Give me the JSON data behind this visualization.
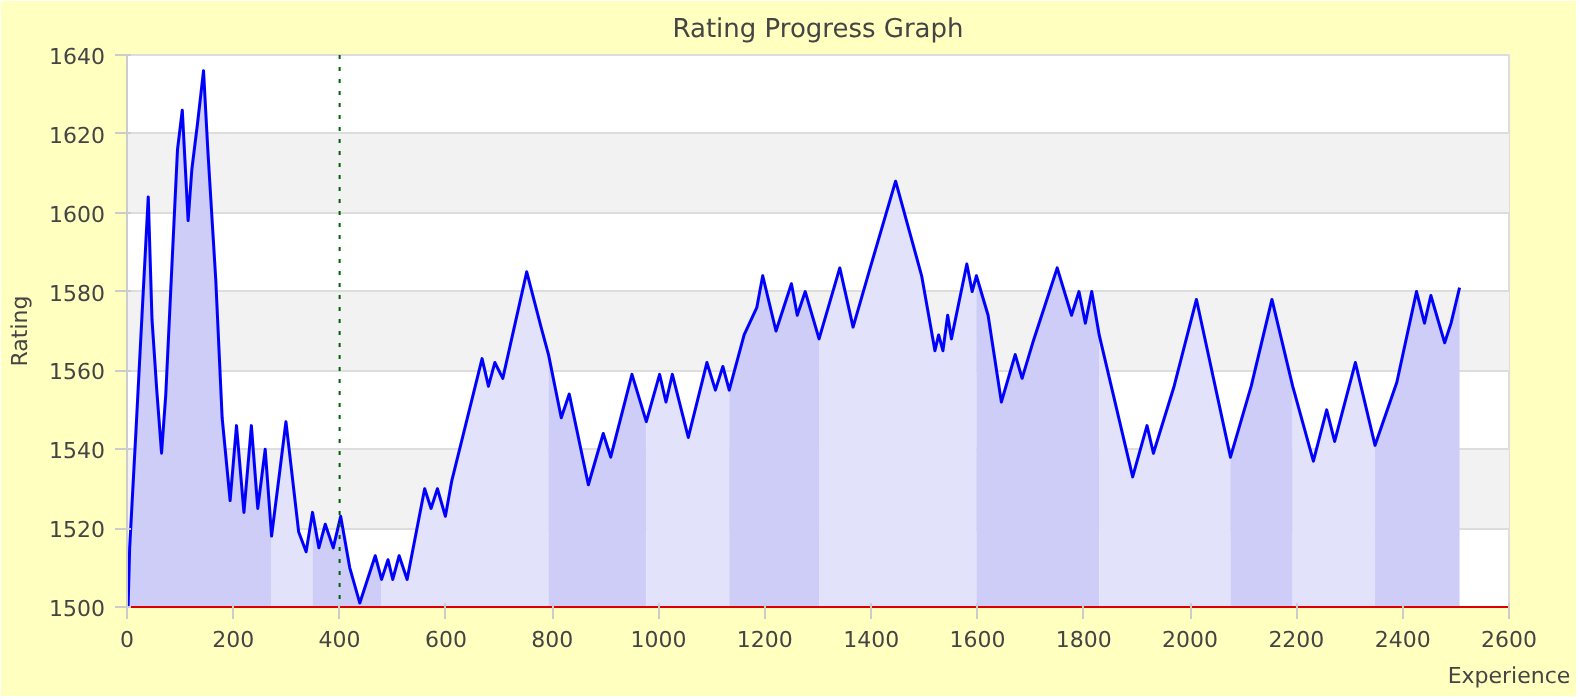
{
  "chart_data": {
    "type": "area",
    "title": "Rating Progress Graph",
    "xlabel": "Experience",
    "ylabel": "Rating",
    "xlim": [
      0,
      2600
    ],
    "xticks": [
      0,
      200,
      400,
      600,
      800,
      1000,
      1200,
      1400,
      1600,
      1800,
      2000,
      2200,
      2400,
      2600
    ],
    "ylim": [
      1500,
      1640
    ],
    "yticks": [
      1500,
      1520,
      1540,
      1560,
      1580,
      1600,
      1620,
      1640
    ],
    "grid": "y",
    "series": [
      {
        "color": "#cdcdf8",
        "x": [
          2,
          5,
          17,
          29,
          40,
          47,
          56,
          65,
          73,
          85,
          95,
          104,
          115,
          122,
          133,
          144,
          152,
          167,
          179,
          194,
          206,
          220,
          234,
          246,
          260,
          272
        ],
        "values": [
          1500,
          1515,
          1545,
          1576,
          1604,
          1573,
          1555,
          1539,
          1554,
          1588,
          1616,
          1626,
          1598,
          1611,
          1623,
          1636,
          1616,
          1583,
          1548,
          1527,
          1546,
          1524,
          1546,
          1525,
          1540,
          1518
        ]
      },
      {
        "color": "#e2e2fb",
        "x": [
          272,
          287,
          299,
          311,
          323,
          337,
          349
        ],
        "values": [
          1518,
          1534,
          1547,
          1533,
          1519,
          1514,
          1524
        ]
      },
      {
        "color": "#cdcdf8",
        "x": [
          349,
          361,
          373,
          388,
          402,
          419,
          438,
          467,
          479
        ],
        "values": [
          1524,
          1515,
          1521,
          1515,
          1523,
          1510,
          1501,
          1513,
          1507
        ]
      },
      {
        "color": "#e2e2fb",
        "x": [
          479,
          491,
          500,
          512,
          527,
          560,
          572,
          584,
          599,
          611,
          668,
          680,
          692,
          707,
          752,
          779,
          793
        ],
        "values": [
          1507,
          1512,
          1507,
          1513,
          1507,
          1530,
          1525,
          1530,
          1523,
          1532,
          1563,
          1556,
          1562,
          1558,
          1585,
          1571,
          1564
        ]
      },
      {
        "color": "#cdcdf8",
        "x": [
          793,
          817,
          832,
          868,
          896,
          910,
          950,
          977
        ],
        "values": [
          1564,
          1548,
          1554,
          1531,
          1544,
          1538,
          1559,
          1547
        ]
      },
      {
        "color": "#e2e2fb",
        "x": [
          977,
          1002,
          1014,
          1026,
          1056,
          1091,
          1107,
          1121,
          1133
        ],
        "values": [
          1547,
          1559,
          1552,
          1559,
          1543,
          1562,
          1555,
          1561,
          1555
        ]
      },
      {
        "color": "#cdcdf8",
        "x": [
          1133,
          1161,
          1185,
          1196,
          1221,
          1250,
          1261,
          1276,
          1302
        ],
        "values": [
          1555,
          1569,
          1576,
          1584,
          1570,
          1582,
          1574,
          1580,
          1568
        ]
      },
      {
        "color": "#e2e2fb",
        "x": [
          1302,
          1341,
          1366,
          1396,
          1446,
          1495,
          1520,
          1527,
          1535,
          1544,
          1551,
          1580,
          1590,
          1598
        ],
        "values": [
          1568,
          1586,
          1571,
          1585,
          1608,
          1584,
          1565,
          1569,
          1565,
          1574,
          1568,
          1587,
          1580,
          1584
        ]
      },
      {
        "color": "#cdcdf8",
        "x": [
          1598,
          1620,
          1645,
          1671,
          1684,
          1704,
          1750,
          1777,
          1791,
          1803,
          1815,
          1829
        ],
        "values": [
          1584,
          1574,
          1552,
          1564,
          1558,
          1567,
          1586,
          1574,
          1580,
          1572,
          1580,
          1569
        ]
      },
      {
        "color": "#e2e2fb",
        "x": [
          1829,
          1892,
          1919,
          1931,
          1970,
          2012,
          2076
        ],
        "values": [
          1569,
          1533,
          1546,
          1539,
          1556,
          1578,
          1538
        ]
      },
      {
        "color": "#cdcdf8",
        "x": [
          2076,
          2115,
          2154,
          2193
        ],
        "values": [
          1538,
          1556,
          1578,
          1556
        ]
      },
      {
        "color": "#e2e2fb",
        "x": [
          2193,
          2232,
          2257,
          2272,
          2311,
          2348
        ],
        "values": [
          1556,
          1537,
          1550,
          1542,
          1562,
          1541
        ]
      },
      {
        "color": "#cdcdf8",
        "x": [
          2348,
          2389,
          2426,
          2441,
          2453,
          2479,
          2491,
          2507
        ],
        "values": [
          1541,
          1557,
          1580,
          1572,
          1579,
          1567,
          1572,
          1581
        ]
      },
      {
        "type": "line",
        "color": "#0000ff",
        "x": [
          2,
          5,
          17,
          29,
          40,
          47,
          56,
          65,
          73,
          85,
          95,
          104,
          115,
          122,
          133,
          144,
          152,
          167,
          179,
          194,
          206,
          220,
          234,
          246,
          260,
          272,
          287,
          299,
          311,
          323,
          337,
          349,
          361,
          373,
          388,
          402,
          419,
          438,
          467,
          479,
          491,
          500,
          512,
          527,
          560,
          572,
          584,
          599,
          611,
          668,
          680,
          692,
          707,
          752,
          779,
          793,
          817,
          832,
          868,
          896,
          910,
          950,
          977,
          1002,
          1014,
          1026,
          1056,
          1091,
          1107,
          1121,
          1133,
          1161,
          1185,
          1196,
          1221,
          1250,
          1261,
          1276,
          1302,
          1341,
          1366,
          1396,
          1446,
          1495,
          1520,
          1527,
          1535,
          1544,
          1551,
          1580,
          1590,
          1598,
          1620,
          1645,
          1671,
          1684,
          1704,
          1750,
          1777,
          1791,
          1803,
          1815,
          1829,
          1892,
          1919,
          1931,
          1970,
          2012,
          2076,
          2115,
          2154,
          2193,
          2232,
          2257,
          2272,
          2311,
          2348,
          2389,
          2426,
          2441,
          2453,
          2479,
          2491,
          2507
        ],
        "values": [
          1500,
          1515,
          1545,
          1576,
          1604,
          1573,
          1555,
          1539,
          1554,
          1588,
          1616,
          1626,
          1598,
          1611,
          1623,
          1636,
          1616,
          1583,
          1548,
          1527,
          1546,
          1524,
          1546,
          1525,
          1540,
          1518,
          1534,
          1547,
          1533,
          1519,
          1514,
          1524,
          1515,
          1521,
          1515,
          1523,
          1510,
          1501,
          1513,
          1507,
          1512,
          1507,
          1513,
          1507,
          1530,
          1525,
          1530,
          1523,
          1532,
          1563,
          1556,
          1562,
          1558,
          1585,
          1571,
          1564,
          1548,
          1554,
          1531,
          1544,
          1538,
          1559,
          1547,
          1559,
          1552,
          1559,
          1543,
          1562,
          1555,
          1561,
          1555,
          1569,
          1576,
          1584,
          1570,
          1582,
          1574,
          1580,
          1568,
          1586,
          1571,
          1585,
          1608,
          1584,
          1565,
          1569,
          1565,
          1574,
          1568,
          1587,
          1580,
          1584,
          1574,
          1552,
          1564,
          1558,
          1567,
          1586,
          1574,
          1580,
          1572,
          1580,
          1569,
          1533,
          1546,
          1539,
          1556,
          1578,
          1538,
          1556,
          1578,
          1556,
          1537,
          1550,
          1542,
          1562,
          1541,
          1557,
          1580,
          1572,
          1579,
          1567,
          1572,
          1581
        ]
      }
    ],
    "ref_lines": [
      {
        "axis": "x",
        "value": 400,
        "color": "#006000",
        "line_style": "dotted"
      }
    ]
  }
}
